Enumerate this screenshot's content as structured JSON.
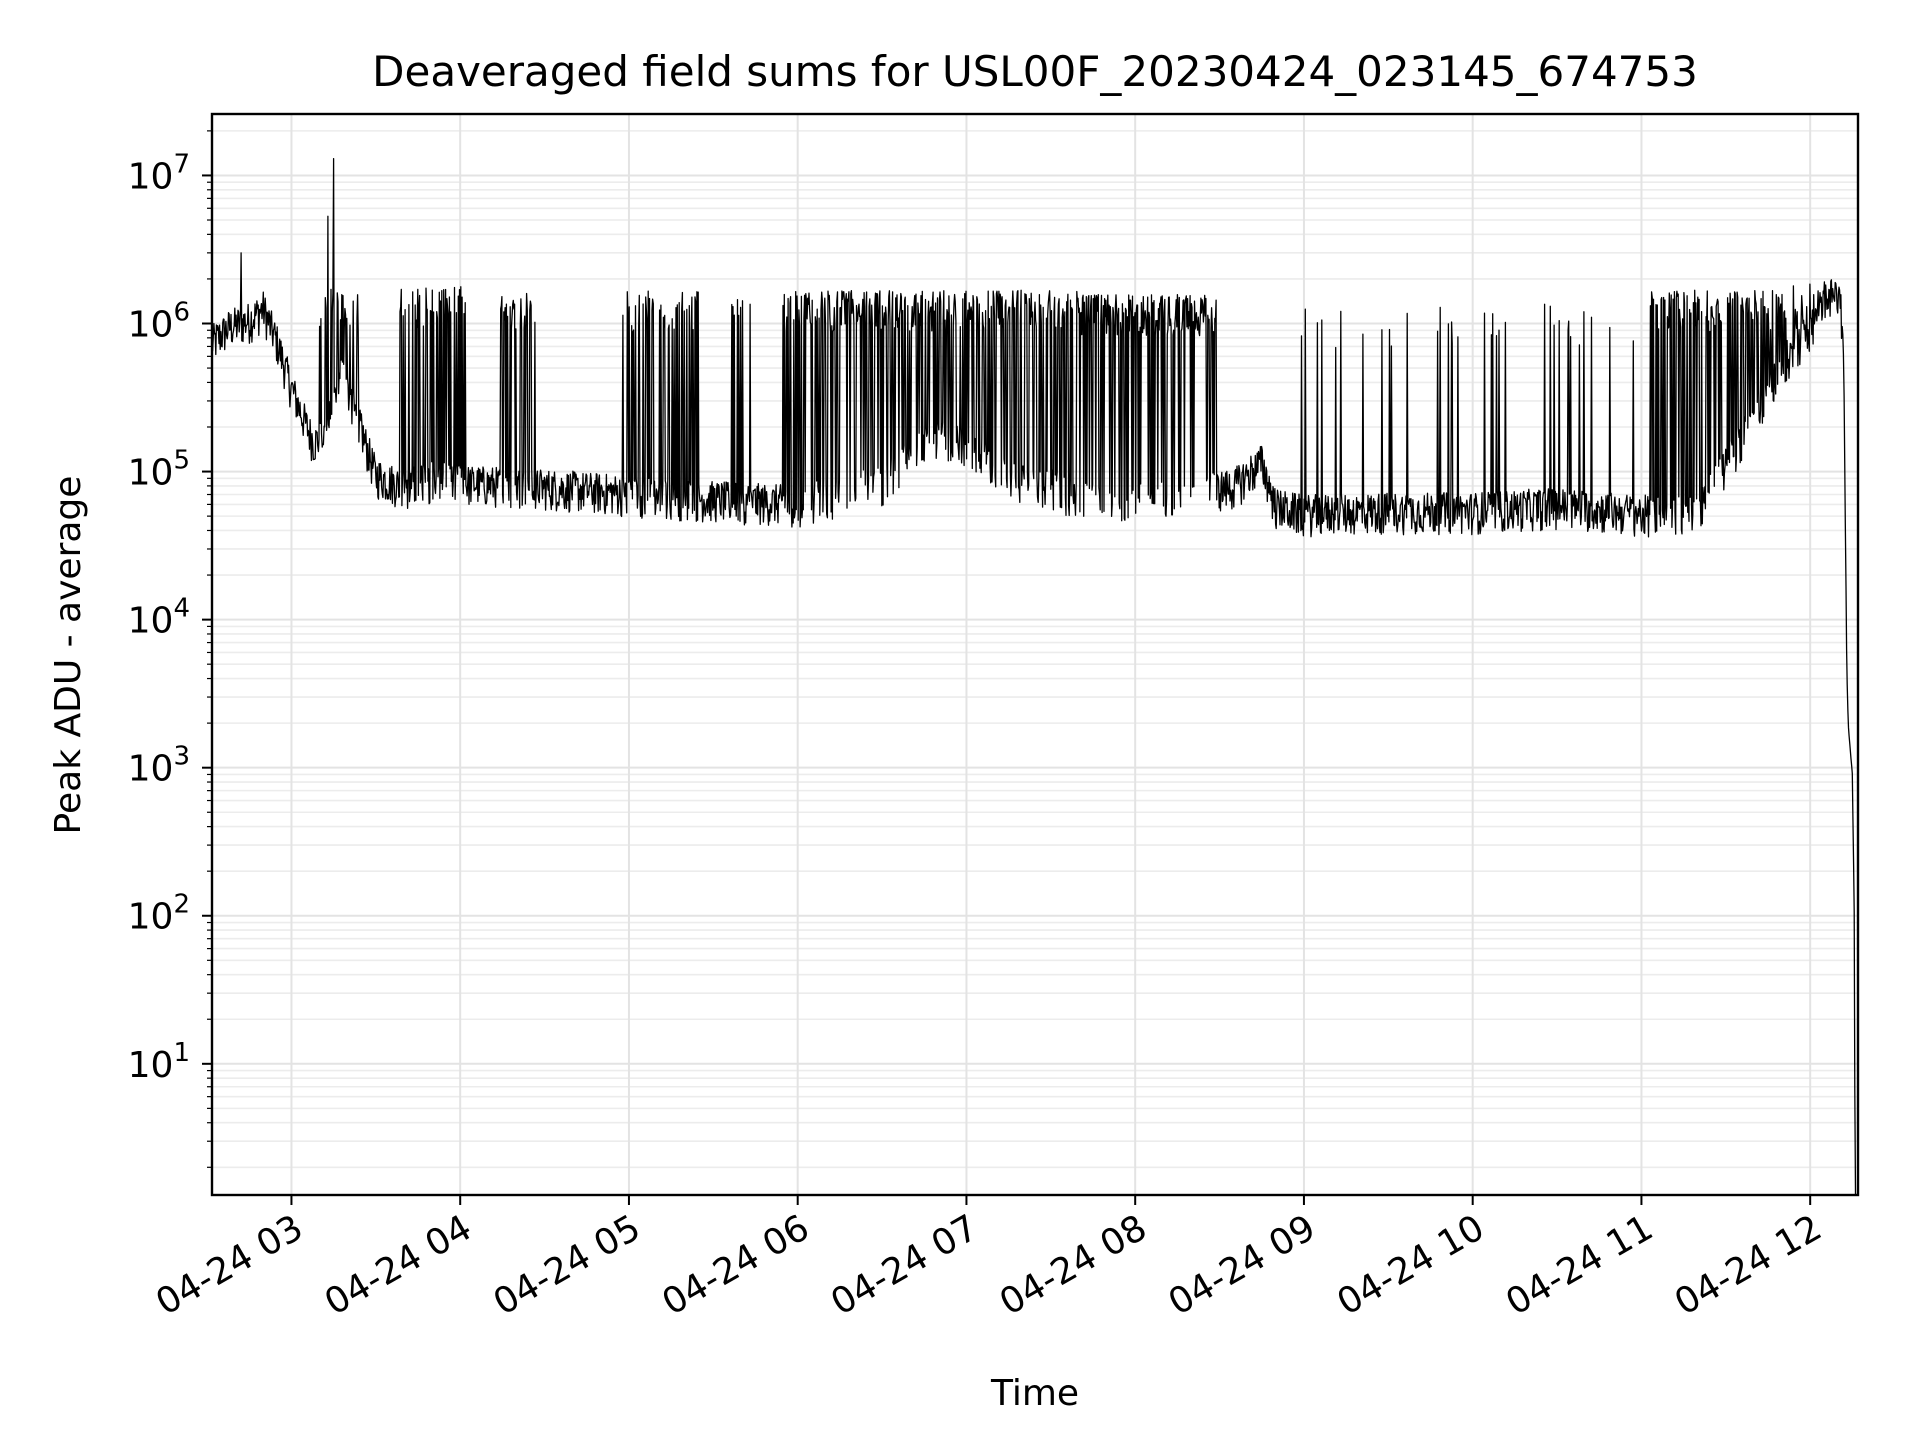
{
  "chart_data": {
    "type": "line",
    "title": "Deaveraged field sums for USL00F_20230424_023145_674753",
    "xlabel": "Time",
    "ylabel": "Peak ADU - average",
    "yscale": "log",
    "ylim": [
      1.3,
      26000000
    ],
    "xlim": [
      "2023-04-24 02:31:45",
      "2023-04-24 12:17:00"
    ],
    "x_ticks": [
      {
        "t": "2023-04-24 03:00",
        "label": "04-24 03"
      },
      {
        "t": "2023-04-24 04:00",
        "label": "04-24 04"
      },
      {
        "t": "2023-04-24 05:00",
        "label": "04-24 05"
      },
      {
        "t": "2023-04-24 06:00",
        "label": "04-24 06"
      },
      {
        "t": "2023-04-24 07:00",
        "label": "04-24 07"
      },
      {
        "t": "2023-04-24 08:00",
        "label": "04-24 08"
      },
      {
        "t": "2023-04-24 09:00",
        "label": "04-24 09"
      },
      {
        "t": "2023-04-24 10:00",
        "label": "04-24 10"
      },
      {
        "t": "2023-04-24 11:00",
        "label": "04-24 11"
      },
      {
        "t": "2023-04-24 12:00",
        "label": "04-24 12"
      }
    ],
    "y_ticks": [
      {
        "value": 10,
        "base": "10",
        "exp": "1"
      },
      {
        "value": 100,
        "base": "10",
        "exp": "2"
      },
      {
        "value": 1000,
        "base": "10",
        "exp": "3"
      },
      {
        "value": 10000,
        "base": "10",
        "exp": "4"
      },
      {
        "value": 100000,
        "base": "10",
        "exp": "5"
      },
      {
        "value": 1000000,
        "base": "10",
        "exp": "6"
      },
      {
        "value": 10000000,
        "base": "10",
        "exp": "7"
      }
    ],
    "grid": "major and minor",
    "line_color": "#000000",
    "series": [
      {
        "baseline": [
          [
            "2023-04-24 02:31:45",
            700000
          ],
          [
            "2023-04-24 02:38",
            900000
          ],
          [
            "2023-04-24 02:45",
            1000000
          ],
          [
            "2023-04-24 02:50",
            1200000
          ],
          [
            "2023-04-24 02:55",
            700000
          ],
          [
            "2023-04-24 03:00",
            350000
          ],
          [
            "2023-04-24 03:05",
            200000
          ],
          [
            "2023-04-24 03:08",
            150000
          ],
          [
            "2023-04-24 03:12",
            170000
          ],
          [
            "2023-04-24 03:18",
            450000
          ],
          [
            "2023-04-24 03:24",
            200000
          ],
          [
            "2023-04-24 03:30",
            90000
          ],
          [
            "2023-04-24 03:40",
            75000
          ],
          [
            "2023-04-24 03:50",
            85000
          ],
          [
            "2023-04-24 04:00",
            80000
          ],
          [
            "2023-04-24 04:30",
            75000
          ],
          [
            "2023-04-24 05:00",
            68000
          ],
          [
            "2023-04-24 05:30",
            62000
          ],
          [
            "2023-04-24 06:00",
            58000
          ],
          [
            "2023-04-24 06:30",
            80000
          ],
          [
            "2023-04-24 06:45",
            160000
          ],
          [
            "2023-04-24 07:00",
            150000
          ],
          [
            "2023-04-24 07:15",
            90000
          ],
          [
            "2023-04-24 07:30",
            75000
          ],
          [
            "2023-04-24 07:45",
            60000
          ],
          [
            "2023-04-24 08:00",
            62000
          ],
          [
            "2023-04-24 08:20",
            70000
          ],
          [
            "2023-04-24 08:35",
            75000
          ],
          [
            "2023-04-24 08:45",
            110000
          ],
          [
            "2023-04-24 08:50",
            55000
          ],
          [
            "2023-04-24 09:00",
            50000
          ],
          [
            "2023-04-24 09:30",
            52000
          ],
          [
            "2023-04-24 10:00",
            52000
          ],
          [
            "2023-04-24 10:30",
            56000
          ],
          [
            "2023-04-24 11:00",
            50000
          ],
          [
            "2023-04-24 11:20",
            50000
          ],
          [
            "2023-04-24 11:35",
            150000
          ],
          [
            "2023-04-24 11:50",
            500000
          ],
          [
            "2023-04-24 12:00",
            900000
          ],
          [
            "2023-04-24 12:05",
            1400000
          ],
          [
            "2023-04-24 12:09",
            1500000
          ],
          [
            "2023-04-24 12:11",
            1300000
          ],
          [
            "2023-04-24 12:12",
            400000
          ],
          [
            "2023-04-24 12:13",
            5000
          ],
          [
            "2023-04-24 12:13:30",
            2000
          ],
          [
            "2023-04-24 12:14",
            1500
          ],
          [
            "2023-04-24 12:15",
            900
          ],
          [
            "2023-04-24 12:15:40",
            100
          ],
          [
            "2023-04-24 12:16",
            1.3
          ]
        ],
        "spikes": [
          [
            "2023-04-24 02:42",
            3000000
          ],
          [
            "2023-04-24 03:13",
            5300000
          ],
          [
            "2023-04-24 03:15",
            13000000
          ],
          [
            "2023-04-24 03:14",
            1700000
          ]
        ],
        "dense_high_intervals": [
          {
            "start": "2023-04-24 03:10",
            "end": "2023-04-24 03:25",
            "high": 1600000,
            "density": 0.35
          },
          {
            "start": "2023-04-24 03:38",
            "end": "2023-04-24 04:02",
            "high": 1700000,
            "density": 0.45
          },
          {
            "start": "2023-04-24 04:13",
            "end": "2023-04-24 04:27",
            "high": 1600000,
            "density": 0.35
          },
          {
            "start": "2023-04-24 04:57",
            "end": "2023-04-24 05:25",
            "high": 1600000,
            "density": 0.35
          },
          {
            "start": "2023-04-24 05:35",
            "end": "2023-04-24 05:45",
            "high": 1500000,
            "density": 0.18
          },
          {
            "start": "2023-04-24 05:53",
            "end": "2023-04-24 06:06",
            "high": 1600000,
            "density": 0.35
          },
          {
            "start": "2023-04-24 06:03",
            "end": "2023-04-24 07:40",
            "high": 1600000,
            "density": 0.6
          },
          {
            "start": "2023-04-24 07:40",
            "end": "2023-04-24 08:29",
            "high": 1500000,
            "density": 0.7
          },
          {
            "start": "2023-04-24 08:50",
            "end": "2023-04-24 09:40",
            "high": 1200000,
            "density": 0.07
          },
          {
            "start": "2023-04-24 09:40",
            "end": "2023-04-24 11:00",
            "high": 1300000,
            "density": 0.05
          },
          {
            "start": "2023-04-24 11:03",
            "end": "2023-04-24 11:52",
            "high": 1600000,
            "density": 0.45
          },
          {
            "start": "2023-04-24 11:52",
            "end": "2023-04-24 12:08",
            "high": 1800000,
            "density": 0.2
          }
        ],
        "noise_floor_ratio": 0.72
      }
    ]
  }
}
